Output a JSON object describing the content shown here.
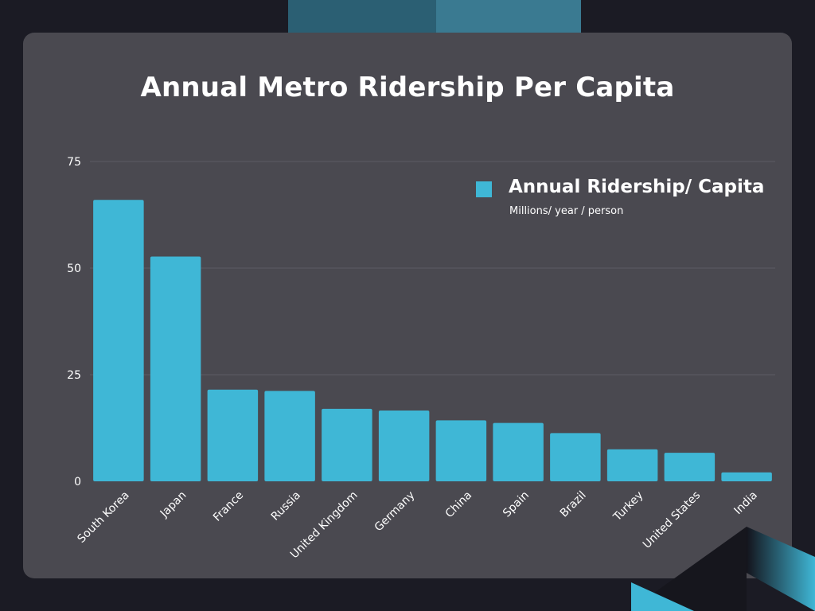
{
  "colors": {
    "background": "#1b1b24",
    "card": "#4a4950",
    "bar": "#3fb7d6",
    "grid": "#5c5b63",
    "text": "#ffffff"
  },
  "chart_data": {
    "type": "bar",
    "title": "Annual Metro Ridership Per Capita",
    "categories": [
      "South Korea",
      "Japan",
      "France",
      "Russia",
      "United Kingdom",
      "Germany",
      "China",
      "Spain",
      "Brazil",
      "Turkey",
      "United States",
      "India"
    ],
    "series": [
      {
        "name": "Annual Ridership/ Capita",
        "subtitle": "Millions/ year / person",
        "values": [
          66,
          52.7,
          21.5,
          21.2,
          17,
          16.6,
          14.3,
          13.7,
          11.3,
          7.5,
          6.7,
          2.1
        ]
      }
    ],
    "yticks": [
      0,
      25,
      50,
      75
    ],
    "ylim": [
      0,
      75
    ],
    "grid": true,
    "legend_position": "top-right",
    "xlabel": "",
    "ylabel": ""
  }
}
